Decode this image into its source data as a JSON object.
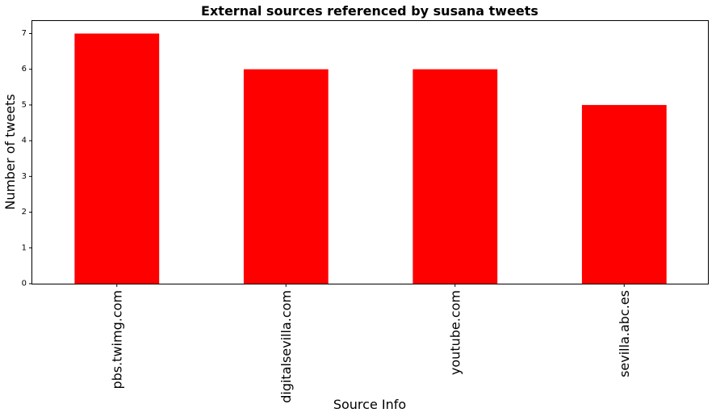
{
  "chart_data": {
    "type": "bar",
    "title": "External sources referenced by susana tweets",
    "xlabel": "Source Info",
    "ylabel": "Number of tweets",
    "categories": [
      "pbs.twimg.com",
      "digitalsevilla.com",
      "youtube.com",
      "sevilla.abc.es"
    ],
    "values": [
      7,
      6,
      6,
      5
    ],
    "yticks": [
      "0",
      "1",
      "2",
      "3",
      "4",
      "5",
      "6",
      "7"
    ],
    "ylim": [
      0,
      7.35
    ],
    "bar_color": "#ff0000",
    "grid": false,
    "legend": "none"
  }
}
